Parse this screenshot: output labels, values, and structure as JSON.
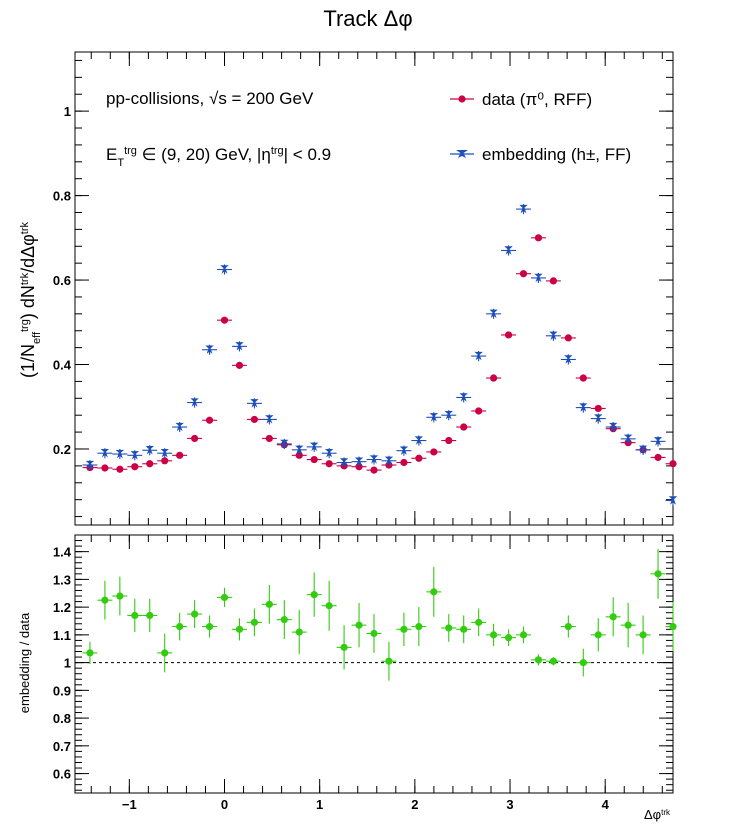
{
  "title": "Track Δφ",
  "chart_data": [
    {
      "type": "scatter",
      "panel": "top",
      "ylabel": "(1/N_eff^trg) dN^trk/dΔφ^trk",
      "xlim": [
        -1.5708,
        4.7124
      ],
      "ylim": [
        0.02,
        1.14
      ],
      "yticks": [
        0.2,
        0.4,
        0.6,
        0.8,
        1
      ],
      "ytick_labels": [
        "0.2",
        "0.4",
        "0.6",
        "0.8",
        "1"
      ],
      "annotations": [
        "pp-collisions, √s = 200 GeV",
        "E_T^trg ∈ (9, 20) GeV, |η^trg| < 0.9"
      ],
      "legend_position": "top-right",
      "series": [
        {
          "name": "data (π⁰, RFF)",
          "color": "#cc0044",
          "marker": "circle",
          "x": [
            -1.4137,
            -1.2566,
            -1.0996,
            -0.9425,
            -0.7854,
            -0.6283,
            -0.4712,
            -0.3142,
            -0.1571,
            0.0,
            0.1571,
            0.3142,
            0.4712,
            0.6283,
            0.7854,
            0.9425,
            1.0996,
            1.2566,
            1.4137,
            1.5708,
            1.7279,
            1.885,
            2.042,
            2.1991,
            2.3562,
            2.5133,
            2.6704,
            2.8274,
            2.9845,
            3.1416,
            3.2987,
            3.4558,
            3.6128,
            3.7699,
            3.927,
            4.0841,
            4.2412,
            4.3982,
            4.5553,
            4.7124
          ],
          "y": [
            0.156,
            0.155,
            0.152,
            0.158,
            0.165,
            0.172,
            0.185,
            0.225,
            0.268,
            0.505,
            0.398,
            0.27,
            0.225,
            0.21,
            0.185,
            0.175,
            0.165,
            0.16,
            0.158,
            0.15,
            0.162,
            0.168,
            0.178,
            0.193,
            0.22,
            0.252,
            0.29,
            0.368,
            0.47,
            0.615,
            0.7,
            0.598,
            0.463,
            0.368,
            0.296,
            0.248,
            0.215,
            0.198,
            0.18,
            0.165
          ],
          "yerr": 0.005
        },
        {
          "name": "embedding (h±, FF)",
          "color": "#1d4fb8",
          "marker": "star",
          "x": [
            -1.4137,
            -1.2566,
            -1.0996,
            -0.9425,
            -0.7854,
            -0.6283,
            -0.4712,
            -0.3142,
            -0.1571,
            0.0,
            0.1571,
            0.3142,
            0.4712,
            0.6283,
            0.7854,
            0.9425,
            1.0996,
            1.2566,
            1.4137,
            1.5708,
            1.7279,
            1.885,
            2.042,
            2.1991,
            2.3562,
            2.5133,
            2.6704,
            2.8274,
            2.9845,
            3.1416,
            3.2987,
            3.4558,
            3.6128,
            3.7699,
            3.927,
            4.0841,
            4.2412,
            4.3982,
            4.5553,
            4.7124
          ],
          "y": [
            0.162,
            0.19,
            0.188,
            0.185,
            0.197,
            0.19,
            0.252,
            0.31,
            0.435,
            0.625,
            0.443,
            0.308,
            0.27,
            0.212,
            0.198,
            0.205,
            0.19,
            0.168,
            0.17,
            0.175,
            0.172,
            0.196,
            0.22,
            0.275,
            0.28,
            0.322,
            0.42,
            0.52,
            0.67,
            0.768,
            0.605,
            0.468,
            0.412,
            0.298,
            0.272,
            0.252,
            0.224,
            0.198,
            0.218,
            0.078
          ],
          "yerr": 0.012
        }
      ]
    },
    {
      "type": "scatter",
      "panel": "bottom",
      "xlabel": "Δφ^trk",
      "ylabel": "embedding / data",
      "xlim": [
        -1.5708,
        4.7124
      ],
      "ylim": [
        0.53,
        1.46
      ],
      "xticks": [
        -1,
        0,
        1,
        2,
        3,
        4
      ],
      "xtick_labels": [
        "−1",
        "0",
        "1",
        "2",
        "3",
        "4"
      ],
      "yticks": [
        0.6,
        0.7,
        0.8,
        0.9,
        1,
        1.1,
        1.2,
        1.3,
        1.4
      ],
      "ytick_labels": [
        "0.6",
        "0.7",
        "0.8",
        "0.9",
        "1",
        "1.1",
        "1.2",
        "1.3",
        "1.4"
      ],
      "reference_line": 1,
      "series": [
        {
          "name": "",
          "color": "#33cc11",
          "marker": "circle",
          "x": [
            -1.4137,
            -1.2566,
            -1.0996,
            -0.9425,
            -0.7854,
            -0.6283,
            -0.4712,
            -0.3142,
            -0.1571,
            0.0,
            0.1571,
            0.3142,
            0.4712,
            0.6283,
            0.7854,
            0.9425,
            1.0996,
            1.2566,
            1.4137,
            1.5708,
            1.7279,
            1.885,
            2.042,
            2.1991,
            2.3562,
            2.5133,
            2.6704,
            2.8274,
            2.9845,
            3.1416,
            3.2987,
            3.4558,
            3.6128,
            3.7699,
            3.927,
            4.0841,
            4.2412,
            4.3982,
            4.5553,
            4.7124
          ],
          "y": [
            1.035,
            1.225,
            1.24,
            1.17,
            1.17,
            1.035,
            1.13,
            1.175,
            1.13,
            1.235,
            1.12,
            1.145,
            1.21,
            1.155,
            1.11,
            1.245,
            1.205,
            1.055,
            1.135,
            1.105,
            1.005,
            1.12,
            1.13,
            1.255,
            1.125,
            1.12,
            1.145,
            1.1,
            1.09,
            1.1,
            1.01,
            1.005,
            1.13,
            1.0,
            1.1,
            1.165,
            1.135,
            1.1,
            1.32,
            1.13
          ],
          "yerr": [
            0.04,
            0.07,
            0.07,
            0.06,
            0.06,
            0.07,
            0.05,
            0.05,
            0.04,
            0.035,
            0.04,
            0.05,
            0.07,
            0.07,
            0.08,
            0.08,
            0.09,
            0.08,
            0.08,
            0.07,
            0.07,
            0.06,
            0.07,
            0.09,
            0.05,
            0.05,
            0.05,
            0.04,
            0.03,
            0.03,
            0.02,
            0.015,
            0.04,
            0.05,
            0.06,
            0.07,
            0.08,
            0.07,
            0.09,
            0.09
          ]
        }
      ]
    }
  ]
}
